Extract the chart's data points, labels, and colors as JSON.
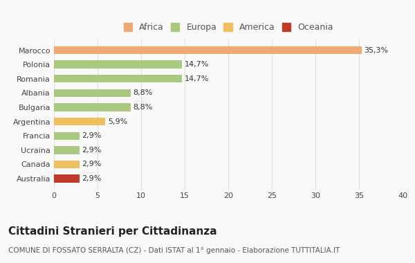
{
  "categories": [
    "Australia",
    "Canada",
    "Ucraina",
    "Francia",
    "Argentina",
    "Bulgaria",
    "Albania",
    "Romania",
    "Polonia",
    "Marocco"
  ],
  "values": [
    2.9,
    2.9,
    2.9,
    2.9,
    5.9,
    8.8,
    8.8,
    14.7,
    14.7,
    35.3
  ],
  "labels": [
    "2,9%",
    "2,9%",
    "2,9%",
    "2,9%",
    "5,9%",
    "8,8%",
    "8,8%",
    "14,7%",
    "14,7%",
    "35,3%"
  ],
  "colors": [
    "#c0392b",
    "#f0c060",
    "#a8c97f",
    "#a8c97f",
    "#f0c060",
    "#a8c97f",
    "#a8c97f",
    "#a8c97f",
    "#a8c97f",
    "#f0a875"
  ],
  "legend": [
    {
      "label": "Africa",
      "color": "#f0a875"
    },
    {
      "label": "Europa",
      "color": "#a8c97f"
    },
    {
      "label": "America",
      "color": "#f0c060"
    },
    {
      "label": "Oceania",
      "color": "#c0392b"
    }
  ],
  "title": "Cittadini Stranieri per Cittadinanza",
  "subtitle": "COMUNE DI FOSSATO SERRALTA (CZ) - Dati ISTAT al 1° gennaio - Elaborazione TUTTITALIA.IT",
  "xlim": [
    0,
    40
  ],
  "xticks": [
    0,
    5,
    10,
    15,
    20,
    25,
    30,
    35,
    40
  ],
  "background_color": "#f9f9f9",
  "bar_height": 0.55,
  "title_fontsize": 11,
  "subtitle_fontsize": 7.5,
  "label_fontsize": 8,
  "tick_fontsize": 8,
  "legend_fontsize": 9
}
